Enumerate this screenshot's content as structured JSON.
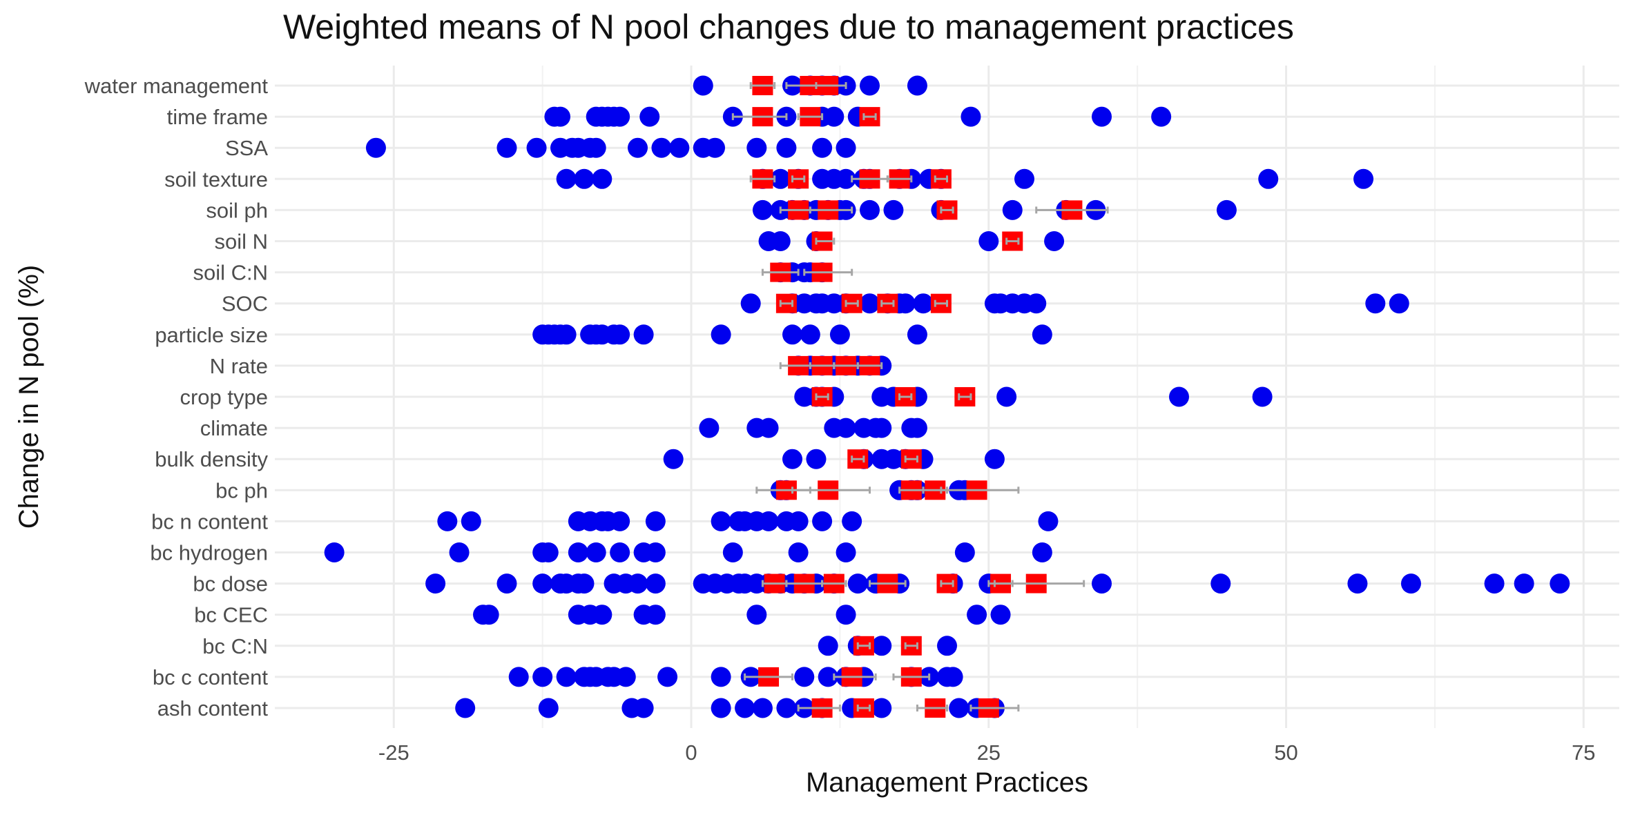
{
  "chart_data": {
    "type": "scatter",
    "title": "Weighted means of N pool changes due to management practices",
    "xlabel": "Management Practices",
    "ylabel": "Change in N pool (%)",
    "xlim": [
      -35,
      78
    ],
    "xticks": [
      -25,
      0,
      25,
      50,
      75
    ],
    "grid": true,
    "colors": {
      "points": "#0000ee",
      "means": "#ff0000",
      "errorbars": "#a6a6a6",
      "grid": "#ebebeb"
    },
    "categories": [
      "water management",
      "time frame",
      "SSA",
      "soil texture",
      "soil ph",
      "soil N",
      "soil C:N",
      "SOC",
      "particle size",
      "N rate",
      "crop type",
      "climate",
      "bulk density",
      "bc ph",
      "bc n content",
      "bc hydrogen",
      "bc dose",
      "bc CEC",
      "bc C:N",
      "bc c content",
      "ash content"
    ],
    "points": {
      "water management": [
        1,
        8.5,
        10,
        11,
        12,
        13,
        15,
        19
      ],
      "time frame": [
        -11.5,
        -11,
        -8,
        -7.5,
        -7,
        -6.5,
        -6,
        -3.5,
        3.5,
        8,
        11,
        12,
        14,
        23.5,
        34.5,
        39.5
      ],
      "SSA": [
        -26.5,
        -15.5,
        -13,
        -11,
        -10,
        -9.5,
        -8.5,
        -8,
        -4.5,
        -2.5,
        -1,
        1,
        2,
        5.5,
        8,
        11,
        13
      ],
      "soil texture": [
        -10.5,
        -9,
        -7.5,
        6,
        7.5,
        9,
        11,
        12,
        13,
        14.5,
        15,
        17.5,
        18.5,
        20,
        21,
        28,
        48.5,
        56.5
      ],
      "soil ph": [
        6,
        7.5,
        8.5,
        9.5,
        10.5,
        11.5,
        12.5,
        13,
        15,
        17,
        21,
        27,
        31.5,
        34,
        45
      ],
      "soil N": [
        6.5,
        7.5,
        10.5,
        25,
        30.5
      ],
      "soil C:N": [
        7.5,
        8.5,
        9.5,
        10,
        11
      ],
      "SOC": [
        5,
        8.5,
        9.5,
        10.5,
        11,
        12,
        13,
        15,
        16.5,
        17.5,
        18,
        19.5,
        25.5,
        26,
        27,
        28,
        29,
        57.5,
        59.5
      ],
      "particle size": [
        -12.5,
        -12,
        -11.5,
        -11,
        -10.5,
        -8.5,
        -8,
        -7.5,
        -6.5,
        -6,
        -4,
        2.5,
        8.5,
        10,
        12.5,
        19,
        29.5
      ],
      "N rate": [
        9,
        10,
        11,
        12,
        13,
        14,
        15,
        16
      ],
      "crop type": [
        9.5,
        10.5,
        11,
        12,
        16,
        17,
        19,
        26.5,
        41,
        48
      ],
      "climate": [
        1.5,
        5.5,
        6.5,
        12,
        13,
        14.5,
        15.5,
        16,
        18.5,
        19
      ],
      "bulk density": [
        -1.5,
        8.5,
        10.5,
        14.5,
        16,
        17,
        18,
        19.5,
        25.5
      ],
      "bc ph": [
        7.5,
        8,
        17.5,
        18.5,
        19,
        22.5,
        23
      ],
      "bc n content": [
        -20.5,
        -18.5,
        -9.5,
        -8.5,
        -7.5,
        -7,
        -6,
        -3,
        2.5,
        4,
        4.5,
        5.5,
        6.5,
        8,
        9,
        11,
        13.5,
        30
      ],
      "bc hydrogen": [
        -30,
        -19.5,
        -12.5,
        -12,
        -9.5,
        -8,
        -6,
        -4,
        -3,
        3.5,
        9,
        13,
        23,
        29.5
      ],
      "bc dose": [
        -21.5,
        -15.5,
        -12.5,
        -11,
        -10.5,
        -9.5,
        -9,
        -6.5,
        -5.5,
        -4.5,
        -3,
        1,
        2,
        3,
        4,
        4.5,
        5.5,
        6.5,
        7.5,
        8.5,
        9.5,
        10.5,
        12,
        14,
        15.5,
        17.5,
        22,
        25,
        34.5,
        44.5,
        56,
        60.5,
        67.5,
        70,
        73
      ],
      "bc CEC": [
        -17.5,
        -17,
        -9.5,
        -8.5,
        -7.5,
        -4,
        -3,
        5.5,
        13,
        24,
        26
      ],
      "bc C:N": [
        11.5,
        14,
        16,
        21.5
      ],
      "bc c content": [
        -14.5,
        -12.5,
        -10.5,
        -9,
        -8.5,
        -8,
        -7,
        -6.5,
        -5.5,
        -2,
        2.5,
        5,
        9.5,
        11.5,
        13,
        14.5,
        18.5,
        20,
        21.5,
        22
      ],
      "ash content": [
        -19,
        -12,
        -5,
        -4,
        2.5,
        4.5,
        6,
        8,
        9.5,
        11,
        13.5,
        16,
        22.5,
        24,
        25.5
      ]
    },
    "weighted_means": {
      "water management": [
        {
          "mean": 6,
          "lo": 5,
          "hi": 7
        },
        {
          "mean": 10,
          "lo": 8,
          "hi": 12
        },
        {
          "mean": 11.5,
          "lo": 10.5,
          "hi": 13
        }
      ],
      "time frame": [
        {
          "mean": 6,
          "lo": 3.5,
          "hi": 8
        },
        {
          "mean": 10,
          "lo": 9,
          "hi": 11
        },
        {
          "mean": 15,
          "lo": 14.5,
          "hi": 15.5
        }
      ],
      "SSA": [],
      "soil texture": [
        {
          "mean": 6,
          "lo": 5,
          "hi": 7
        },
        {
          "mean": 9,
          "lo": 8.5,
          "hi": 9.5
        },
        {
          "mean": 15,
          "lo": 13.5,
          "hi": 16.5
        },
        {
          "mean": 17.5,
          "lo": 16.5,
          "hi": 18.5
        },
        {
          "mean": 21,
          "lo": 20.5,
          "hi": 21.5
        }
      ],
      "soil ph": [
        {
          "mean": 9,
          "lo": 7.5,
          "hi": 11
        },
        {
          "mean": 11.5,
          "lo": 10,
          "hi": 13.5
        },
        {
          "mean": 21.5,
          "lo": 21,
          "hi": 22
        },
        {
          "mean": 32,
          "lo": 29,
          "hi": 35
        }
      ],
      "soil N": [
        {
          "mean": 11,
          "lo": 10.5,
          "hi": 12
        },
        {
          "mean": 27,
          "lo": 26.5,
          "hi": 27.5
        }
      ],
      "soil C:N": [
        {
          "mean": 7.5,
          "lo": 6,
          "hi": 9
        },
        {
          "mean": 11,
          "lo": 9.5,
          "hi": 13.5
        }
      ],
      "SOC": [
        {
          "mean": 8,
          "lo": 7.5,
          "hi": 8.5
        },
        {
          "mean": 13.5,
          "lo": 13,
          "hi": 14
        },
        {
          "mean": 16.5,
          "lo": 16,
          "hi": 17
        },
        {
          "mean": 21,
          "lo": 20.5,
          "hi": 21.5
        }
      ],
      "particle size": [],
      "N rate": [
        {
          "mean": 9,
          "lo": 7.5,
          "hi": 10.5
        },
        {
          "mean": 11,
          "lo": 10,
          "hi": 12
        },
        {
          "mean": 13,
          "lo": 12,
          "hi": 14
        },
        {
          "mean": 15,
          "lo": 14,
          "hi": 16
        }
      ],
      "crop type": [
        {
          "mean": 11,
          "lo": 10.5,
          "hi": 11.5
        },
        {
          "mean": 18,
          "lo": 17.5,
          "hi": 18.5
        },
        {
          "mean": 23,
          "lo": 22.5,
          "hi": 23.5
        }
      ],
      "climate": [],
      "bulk density": [
        {
          "mean": 14,
          "lo": 13.5,
          "hi": 14.5
        },
        {
          "mean": 18.5,
          "lo": 18,
          "hi": 19
        }
      ],
      "bc ph": [
        {
          "mean": 8,
          "lo": 5.5,
          "hi": 10
        },
        {
          "mean": 11.5,
          "lo": 8.5,
          "hi": 15
        },
        {
          "mean": 18.5,
          "lo": 17.5,
          "hi": 19.5
        },
        {
          "mean": 20.5,
          "lo": 19.5,
          "hi": 21.5
        },
        {
          "mean": 24,
          "lo": 21,
          "hi": 27.5
        }
      ],
      "bc n content": [],
      "bc hydrogen": [],
      "bc dose": [
        {
          "mean": 7,
          "lo": 6,
          "hi": 8
        },
        {
          "mean": 9.5,
          "lo": 8,
          "hi": 11
        },
        {
          "mean": 12,
          "lo": 11,
          "hi": 13
        },
        {
          "mean": 16.5,
          "lo": 15,
          "hi": 18
        },
        {
          "mean": 21.5,
          "lo": 21,
          "hi": 22
        },
        {
          "mean": 26,
          "lo": 25,
          "hi": 27
        },
        {
          "mean": 29,
          "lo": 25.5,
          "hi": 33
        }
      ],
      "bc CEC": [],
      "bc C:N": [
        {
          "mean": 14.5,
          "lo": 14,
          "hi": 15
        },
        {
          "mean": 18.5,
          "lo": 18,
          "hi": 19
        }
      ],
      "bc c content": [
        {
          "mean": 6.5,
          "lo": 4.5,
          "hi": 8.5
        },
        {
          "mean": 13.5,
          "lo": 12,
          "hi": 15.5
        },
        {
          "mean": 18.5,
          "lo": 17,
          "hi": 20
        }
      ],
      "ash content": [
        {
          "mean": 11,
          "lo": 9,
          "hi": 12.5
        },
        {
          "mean": 14.5,
          "lo": 14,
          "hi": 15
        },
        {
          "mean": 20.5,
          "lo": 19,
          "hi": 21.5
        },
        {
          "mean": 25,
          "lo": 23.5,
          "hi": 27.5
        }
      ]
    }
  }
}
